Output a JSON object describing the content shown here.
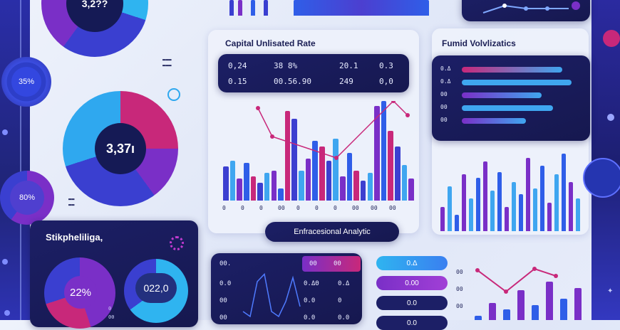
{
  "colors": {
    "navy": "#151a55",
    "indigo": "#3c3fd0",
    "violet": "#7a2fc7",
    "magenta": "#c8287a",
    "cyan": "#3fa6f0",
    "blue": "#2f5ee8"
  },
  "gauges": {
    "top_partial": "3,2??",
    "left_a": "35%",
    "left_b": "80%",
    "main_value": "3,37ı",
    "legend_small": [
      "  ",
      " "
    ]
  },
  "capital_panel": {
    "title": "Capital Unlisated Rate",
    "table": [
      [
        "0,24",
        "38 8%",
        "20.1",
        "0.3"
      ],
      [
        "0.15",
        "00.56.90",
        "249",
        "0,0"
      ]
    ],
    "bars": [
      34,
      40,
      22,
      38,
      24,
      18,
      28,
      30,
      12,
      90,
      82,
      30,
      42,
      60,
      54,
      40,
      62,
      24,
      48,
      30,
      20,
      28,
      95,
      100,
      70,
      54,
      36,
      22
    ],
    "ticks": [
      "0",
      "0",
      "0",
      "00",
      "0",
      "0",
      "0",
      "00",
      "00",
      "00"
    ],
    "button_label": "Enfracesional Analytic"
  },
  "funnel_panel": {
    "title": "Fumid Volvlizatics",
    "rows": [
      {
        "label": "0.Δ",
        "value": 88
      },
      {
        "label": "0.Δ",
        "value": 96
      },
      {
        "label": "00",
        "value": 70
      },
      {
        "label": "00",
        "value": 80
      },
      {
        "label": "00",
        "value": 56
      }
    ],
    "bars": [
      30,
      55,
      20,
      70,
      40,
      65,
      85,
      50,
      72,
      30,
      60,
      45,
      90,
      52,
      80,
      35,
      70,
      95,
      60,
      40
    ]
  },
  "stakeholder_panel": {
    "title": "Stikpheliliga,",
    "value_a": "22%",
    "value_b": "022,0",
    "ticks": [
      "0",
      "00"
    ]
  },
  "table_panel": {
    "headers": [
      "00.",
      "00",
      "00"
    ],
    "rows": [
      [
        "0.0",
        "",
        "0.ΔΘ",
        "0.Δ"
      ],
      [
        "00",
        "",
        "0.0",
        "0"
      ],
      [
        "00",
        "",
        "0.0",
        "0.0"
      ]
    ],
    "line_points": [
      20,
      10,
      80,
      95,
      20,
      10,
      40,
      88,
      30
    ]
  },
  "pills": [
    "0.Δ",
    "0.00",
    "0.0",
    "0.0"
  ],
  "bottom_right": {
    "ticks": [
      "00",
      "00",
      "00"
    ],
    "bars": [
      10,
      40,
      25,
      70,
      35,
      90,
      50,
      75
    ]
  }
}
